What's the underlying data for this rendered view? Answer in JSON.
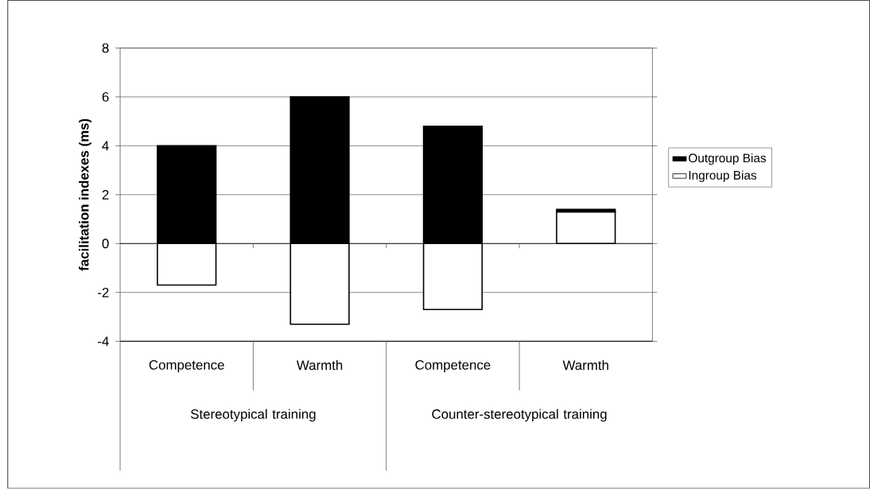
{
  "chart_data": {
    "type": "bar",
    "stacked": true,
    "ylabel": "facilitation indexes (ms)",
    "categories": [
      "Competence",
      "Warmth",
      "Competence",
      "Warmth"
    ],
    "annotations": [
      "Stereotypical training",
      "Counter-stereotypical training"
    ],
    "series": [
      {
        "name": "Ingroup Bias",
        "color": "#ffffff",
        "values": [
          -1.7,
          -3.3,
          -2.7,
          1.3
        ]
      },
      {
        "name": "Outgroup Bias",
        "color": "#000000",
        "values": [
          4.0,
          6.0,
          4.8,
          0.1
        ]
      }
    ],
    "ylim": [
      -4,
      8
    ],
    "yticks": [
      -4,
      -2,
      0,
      2,
      4,
      6,
      8
    ],
    "grid": "y",
    "legend": "right"
  }
}
